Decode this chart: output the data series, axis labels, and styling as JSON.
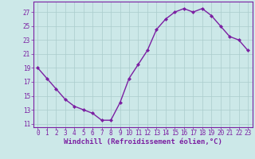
{
  "x": [
    0,
    1,
    2,
    3,
    4,
    5,
    6,
    7,
    8,
    9,
    10,
    11,
    12,
    13,
    14,
    15,
    16,
    17,
    18,
    19,
    20,
    21,
    22,
    23
  ],
  "y": [
    19,
    17.5,
    16,
    14.5,
    13.5,
    13,
    12.5,
    11.5,
    11.5,
    14,
    17.5,
    19.5,
    21.5,
    24.5,
    26,
    27,
    27.5,
    27,
    27.5,
    26.5,
    25,
    23.5,
    23,
    21.5
  ],
  "line_color": "#7b1fa2",
  "marker": "D",
  "marker_size": 2.0,
  "bg_color": "#cce8e8",
  "grid_color": "#aacccc",
  "xlabel": "Windchill (Refroidissement éolien,°C)",
  "ylim": [
    10.5,
    28.5
  ],
  "xlim": [
    -0.5,
    23.5
  ],
  "yticks": [
    11,
    13,
    15,
    17,
    19,
    21,
    23,
    25,
    27
  ],
  "xticks": [
    0,
    1,
    2,
    3,
    4,
    5,
    6,
    7,
    8,
    9,
    10,
    11,
    12,
    13,
    14,
    15,
    16,
    17,
    18,
    19,
    20,
    21,
    22,
    23
  ],
  "tick_label_color": "#7b1fa2",
  "tick_label_size": 5.5,
  "xlabel_size": 6.5,
  "line_width": 1.0,
  "spine_color": "#7b1fa2"
}
